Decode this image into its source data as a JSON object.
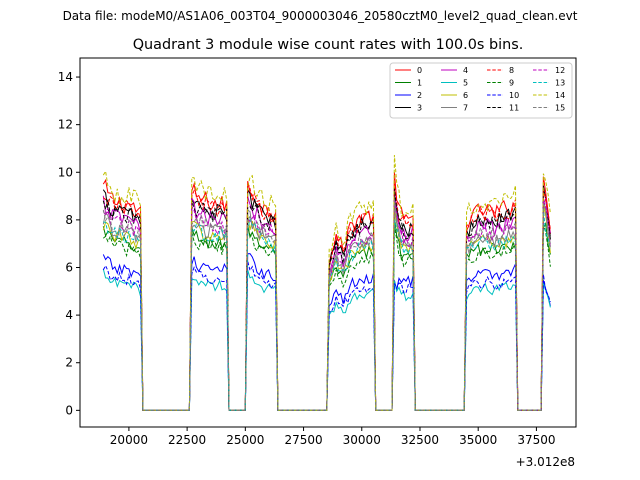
{
  "header": {
    "data_file_label": "Data file: modeM0/AS1A06_003T04_9000003046_20580cztM0_level2_quad_clean.evt"
  },
  "chart_data": {
    "type": "line",
    "title": "Quadrant 3 module wise count rates with 100.0s bins.",
    "xlabel": "",
    "ylabel": "",
    "x_offset_label": "+3.012e8",
    "xlim": [
      17900,
      39200
    ],
    "ylim": [
      -0.7,
      14.8
    ],
    "xticks": [
      20000,
      22500,
      25000,
      27500,
      30000,
      32500,
      35000,
      37500
    ],
    "xtick_labels": [
      "20000",
      "22500",
      "25000",
      "27500",
      "30000",
      "32500",
      "35000",
      "37500"
    ],
    "yticks": [
      0,
      2,
      4,
      6,
      8,
      10,
      12,
      14
    ],
    "ytick_labels": [
      "0",
      "2",
      "4",
      "6",
      "8",
      "10",
      "12",
      "14"
    ],
    "grid": false,
    "legend_position": "top-right",
    "bin_width": 100,
    "profile": {
      "segments": [
        {
          "start": 18900,
          "end": 20500,
          "shape": [
            [
              18900,
              1.0
            ],
            [
              19300,
              0.94
            ],
            [
              19700,
              0.92
            ],
            [
              20100,
              0.92
            ],
            [
              20500,
              0.88
            ]
          ]
        },
        {
          "start": 22700,
          "end": 24200,
          "shape": [
            [
              22700,
              0.98
            ],
            [
              23000,
              0.95
            ],
            [
              23400,
              0.93
            ],
            [
              23800,
              0.92
            ],
            [
              24200,
              0.92
            ]
          ]
        },
        {
          "start": 25100,
          "end": 26300,
          "shape": [
            [
              25100,
              1.0
            ],
            [
              25400,
              0.96
            ],
            [
              25800,
              0.9
            ],
            [
              26300,
              0.88
            ]
          ]
        },
        {
          "start": 28600,
          "end": 30500,
          "shape": [
            [
              28600,
              0.68
            ],
            [
              28900,
              0.78
            ],
            [
              29200,
              0.72
            ],
            [
              29500,
              0.82
            ],
            [
              29900,
              0.86
            ],
            [
              30500,
              0.87
            ]
          ]
        },
        {
          "start": 31400,
          "end": 32200,
          "shape": [
            [
              31400,
              1.0
            ],
            [
              31650,
              0.88
            ],
            [
              31900,
              0.84
            ],
            [
              32200,
              0.86
            ]
          ]
        },
        {
          "start": 34500,
          "end": 36600,
          "shape": [
            [
              34500,
              0.84
            ],
            [
              34900,
              0.88
            ],
            [
              35300,
              0.9
            ],
            [
              35700,
              0.88
            ],
            [
              36100,
              0.9
            ],
            [
              36600,
              0.93
            ]
          ]
        },
        {
          "start": 37800,
          "end": 38100,
          "shape": [
            [
              37800,
              1.0
            ],
            [
              37950,
              0.92
            ],
            [
              38100,
              0.8
            ]
          ]
        }
      ]
    },
    "series": [
      {
        "name": "0",
        "color": "#ff0000",
        "style": "solid",
        "level": 9.4,
        "peak_boost": 1.02
      },
      {
        "name": "1",
        "color": "#008000",
        "style": "solid",
        "level": 7.6,
        "peak_boost": 1.05
      },
      {
        "name": "2",
        "color": "#0000ff",
        "style": "solid",
        "level": 6.4,
        "peak_boost": 0.86
      },
      {
        "name": "3",
        "color": "#000000",
        "style": "solid",
        "level": 9.0,
        "peak_boost": 1.03
      },
      {
        "name": "4",
        "color": "#bf00bf",
        "style": "solid",
        "level": 8.7,
        "peak_boost": 1.04
      },
      {
        "name": "5",
        "color": "#00bfbf",
        "style": "solid",
        "level": 5.7,
        "peak_boost": 0.95
      },
      {
        "name": "6",
        "color": "#bfbf00",
        "style": "solid",
        "level": 7.9,
        "peak_boost": 1.08
      },
      {
        "name": "7",
        "color": "#808080",
        "style": "solid",
        "level": 8.1,
        "peak_boost": 1.05
      },
      {
        "name": "8",
        "color": "#ff0000",
        "style": "dashed",
        "level": 9.2,
        "peak_boost": 1.03
      },
      {
        "name": "9",
        "color": "#008000",
        "style": "dashed",
        "level": 7.4,
        "peak_boost": 1.05
      },
      {
        "name": "10",
        "color": "#0000ff",
        "style": "dashed",
        "level": 6.0,
        "peak_boost": 0.92
      },
      {
        "name": "11",
        "color": "#000000",
        "style": "dashed",
        "level": 8.9,
        "peak_boost": 1.02
      },
      {
        "name": "12",
        "color": "#bf00bf",
        "style": "dashed",
        "level": 8.4,
        "peak_boost": 1.05
      },
      {
        "name": "13",
        "color": "#00bfbf",
        "style": "dashed",
        "level": 7.9,
        "peak_boost": 1.04
      },
      {
        "name": "14",
        "color": "#bfbf00",
        "style": "dashed",
        "level": 9.8,
        "peak_boost": 1.05
      },
      {
        "name": "15",
        "color": "#808080",
        "style": "dashed",
        "level": 8.3,
        "peak_boost": 1.05
      }
    ]
  }
}
